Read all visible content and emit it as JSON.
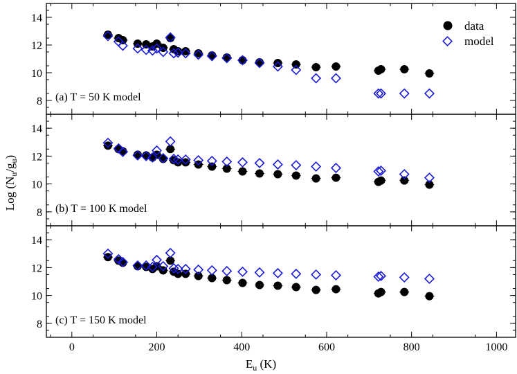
{
  "colors": {
    "data": "#000000",
    "model": "#1a1ad6",
    "frame": "#000000"
  },
  "chart_data": {
    "type": "scatter",
    "xlabel_main": "E",
    "xlabel_sub": "u",
    "xlabel_unit": " (K)",
    "ylabel_prefix": "Log (N",
    "ylabel_sub1": "u",
    "ylabel_mid": "/g",
    "ylabel_sub2": "u",
    "ylabel_suffix": ")",
    "xlim": [
      -60,
      1045
    ],
    "xticks": [
      0,
      200,
      400,
      600,
      800,
      1000
    ],
    "xtick_labels": [
      "0",
      "200",
      "400",
      "600",
      "800",
      "1000"
    ],
    "ylim": [
      7,
      15
    ],
    "yticks": [
      8,
      10,
      12,
      14
    ],
    "ytick_labels": [
      "8",
      "10",
      "12",
      "14"
    ],
    "legend": {
      "position": "top-right",
      "entries": [
        "data",
        "model"
      ]
    },
    "x": [
      85,
      110,
      120,
      155,
      175,
      190,
      200,
      215,
      232,
      240,
      250,
      268,
      298,
      330,
      365,
      402,
      442,
      485,
      528,
      575,
      622,
      722,
      728,
      783,
      842
    ],
    "data": [
      12.75,
      12.5,
      12.35,
      12.1,
      12.05,
      11.9,
      12.1,
      11.8,
      12.5,
      11.7,
      11.55,
      11.55,
      11.4,
      11.25,
      11.1,
      10.9,
      10.75,
      10.7,
      10.6,
      10.4,
      10.45,
      10.15,
      10.25,
      10.25,
      9.95
    ],
    "panels": [
      {
        "label": "(a) T = 50 K model",
        "model": [
          12.65,
          12.25,
          11.95,
          11.75,
          11.65,
          11.6,
          11.75,
          11.5,
          12.55,
          11.4,
          11.45,
          11.4,
          11.3,
          11.2,
          11.05,
          10.9,
          10.7,
          10.45,
          10.2,
          9.6,
          9.6,
          8.5,
          8.5,
          8.5,
          8.5
        ]
      },
      {
        "label": "(b) T = 100 K model",
        "model": [
          12.95,
          12.55,
          12.3,
          12.05,
          12.0,
          11.9,
          12.4,
          11.85,
          13.05,
          11.8,
          11.75,
          11.75,
          11.7,
          11.65,
          11.6,
          11.55,
          11.5,
          11.4,
          11.35,
          11.25,
          11.15,
          10.9,
          10.95,
          10.7,
          10.45
        ]
      },
      {
        "label": "(c) T = 150 K model",
        "model": [
          13.0,
          12.6,
          12.4,
          12.15,
          12.15,
          12.05,
          12.55,
          12.1,
          13.05,
          11.95,
          11.9,
          11.9,
          11.85,
          11.8,
          11.75,
          11.7,
          11.65,
          11.6,
          11.55,
          11.5,
          11.45,
          11.35,
          11.4,
          11.3,
          11.2
        ]
      }
    ]
  }
}
